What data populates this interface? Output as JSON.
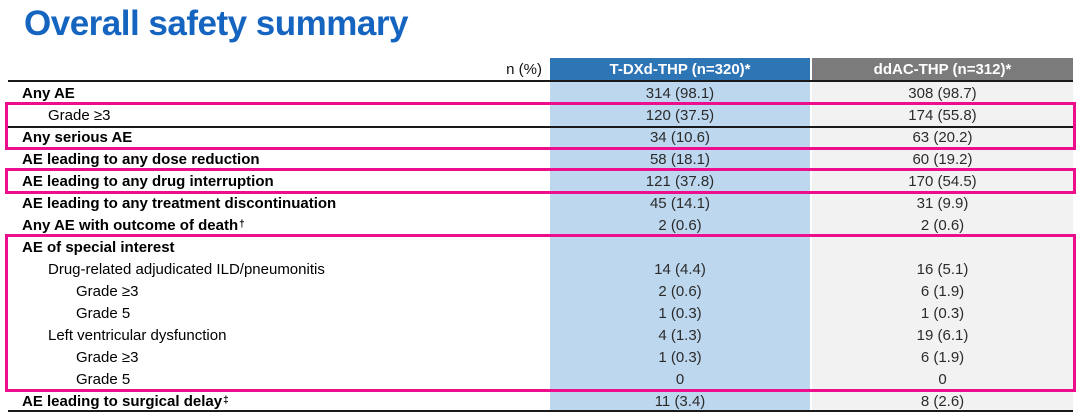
{
  "title": "Overall safety summary",
  "colors": {
    "title_blue": "#1565C0",
    "col1_header": "#2E75B6",
    "col1_body": "#BDD7EE",
    "col2_header": "#7B7B7B",
    "col2_body": "#F2F2F2",
    "highlight_pink": "#EC0E8C",
    "line_black": "#1a1a1a"
  },
  "table": {
    "corner_label": "n (%)",
    "columns": [
      {
        "label": "T-DXd-THP (n=320)*"
      },
      {
        "label": "ddAC-THP (n=312)*"
      }
    ],
    "rows": [
      {
        "label": "Any AE",
        "v1": "314 (98.1)",
        "v2": "308 (98.7)"
      },
      {
        "label": "Grade ≥3",
        "v1": "120 (37.5)",
        "v2": "174 (55.8)"
      },
      {
        "label": "Any serious AE",
        "v1": "34 (10.6)",
        "v2": "63 (20.2)"
      },
      {
        "label": "AE leading to any dose reduction",
        "v1": "58 (18.1)",
        "v2": "60 (19.2)"
      },
      {
        "label": "AE leading to any drug interruption",
        "v1": "121 (37.8)",
        "v2": "170 (54.5)"
      },
      {
        "label": "AE leading to any treatment discontinuation",
        "v1": "45 (14.1)",
        "v2": "31 (9.9)"
      },
      {
        "label": "Any AE with outcome of death",
        "sup": "†",
        "v1": "2 (0.6)",
        "v2": "2 (0.6)"
      },
      {
        "label": "AE of special interest",
        "v1": "",
        "v2": ""
      },
      {
        "label": "Drug-related adjudicated ILD/pneumonitis",
        "v1": "14 (4.4)",
        "v2": "16 (5.1)"
      },
      {
        "label": "Grade ≥3",
        "v1": "2 (0.6)",
        "v2": "6 (1.9)"
      },
      {
        "label": "Grade 5",
        "v1": "1 (0.3)",
        "v2": "1 (0.3)"
      },
      {
        "label": "Left ventricular dysfunction",
        "v1": "4 (1.3)",
        "v2": "19 (6.1)"
      },
      {
        "label": "Grade ≥3",
        "v1": "1 (0.3)",
        "v2": "6 (1.9)"
      },
      {
        "label": "Grade 5",
        "v1": "0",
        "v2": "0"
      },
      {
        "label": "AE leading to surgical delay",
        "sup": "‡",
        "v1": "11 (3.4)",
        "v2": "8 (2.6)"
      }
    ]
  }
}
